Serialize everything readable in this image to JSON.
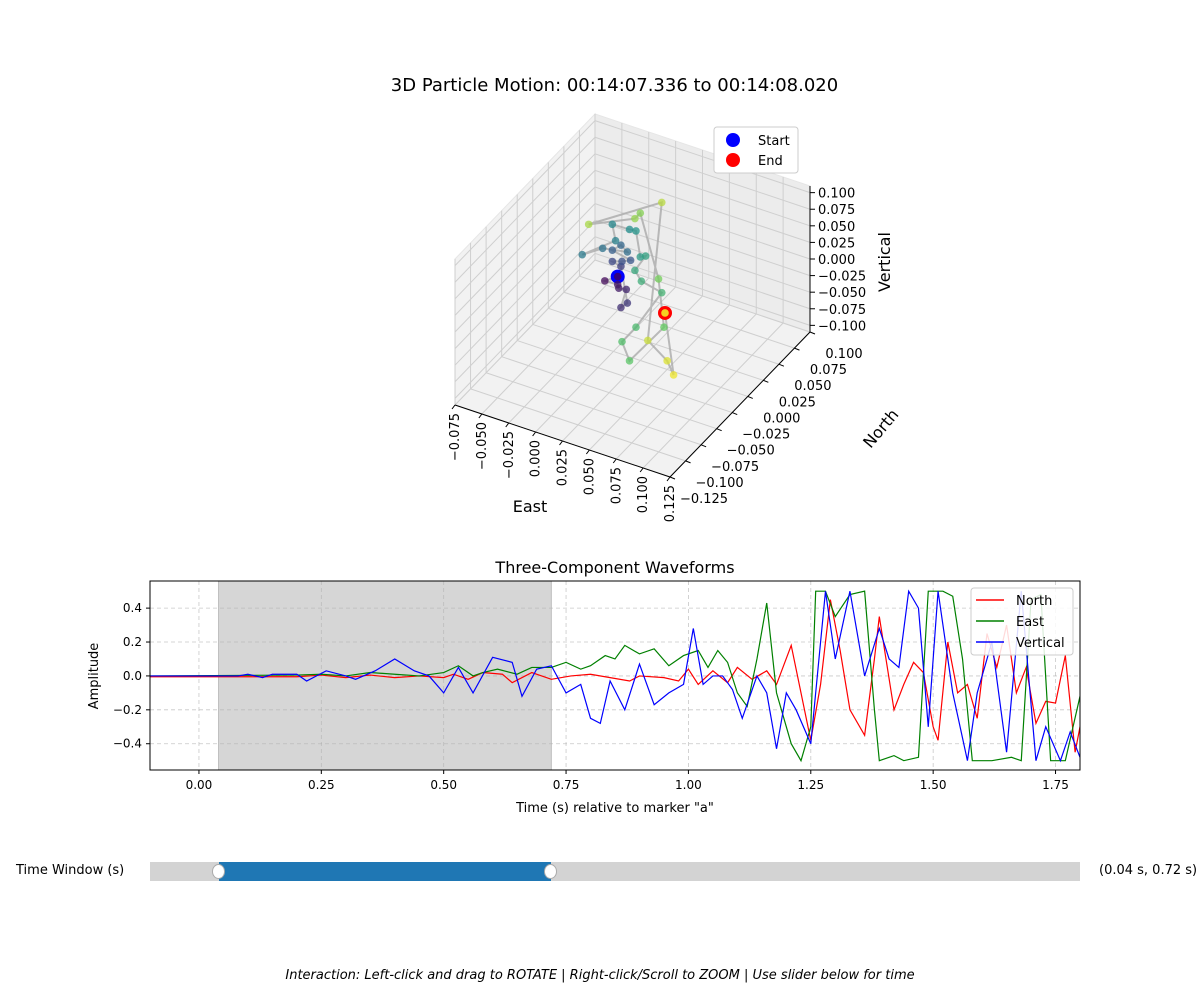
{
  "title": "3D Particle Motion: 00:14:07.336 to 00:14:08.020",
  "chart_data": [
    {
      "type": "scatter3d",
      "xlabel": "East",
      "ylabel": "North",
      "zlabel": "Vertical",
      "xlim": [
        -0.075,
        0.125
      ],
      "ylim": [
        -0.125,
        0.1
      ],
      "zlim": [
        -0.11,
        0.11
      ],
      "xticks": [
        "−0.075",
        "−0.050",
        "−0.025",
        "0.000",
        "0.025",
        "0.050",
        "0.075",
        "0.100",
        "0.125"
      ],
      "xtick_values": [
        -0.075,
        -0.05,
        -0.025,
        0,
        0.025,
        0.05,
        0.075,
        0.1,
        0.125
      ],
      "yticks": [
        "−0.125",
        "−0.100",
        "−0.075",
        "−0.050",
        "−0.025",
        "0.000",
        "0.025",
        "0.050",
        "0.075",
        "0.100"
      ],
      "ytick_values": [
        -0.125,
        -0.1,
        -0.075,
        -0.05,
        -0.025,
        0,
        0.025,
        0.05,
        0.075,
        0.1
      ],
      "zticks": [
        "−0.100",
        "−0.075",
        "−0.050",
        "−0.025",
        "0.000",
        "0.025",
        "0.050",
        "0.075",
        "0.100"
      ],
      "ztick_values": [
        -0.1,
        -0.075,
        -0.05,
        -0.025,
        0,
        0.025,
        0.05,
        0.075,
        0.1
      ],
      "legend": [
        {
          "label": "Start",
          "color": "#0000ff"
        },
        {
          "label": "End",
          "color": "#ff0000"
        }
      ],
      "legend_position": "top-right",
      "colormap": "viridis",
      "points": [
        [
          0.004,
          0,
          0.005
        ],
        [
          -0.008,
          0,
          -0.008
        ],
        [
          0.004,
          0,
          -0.007
        ],
        [
          0.005,
          0,
          -0.012
        ],
        [
          0.012,
          0,
          -0.01
        ],
        [
          0.007,
          0,
          -0.04
        ],
        [
          0.013,
          0,
          -0.03
        ],
        [
          0.007,
          0,
          0.022
        ],
        [
          -0.001,
          0,
          0.025
        ],
        [
          0.008,
          0,
          0.03
        ],
        [
          0.016,
          0,
          0.036
        ],
        [
          -0.001,
          0,
          0.042
        ],
        [
          0.007,
          0,
          0.054
        ],
        [
          0.013,
          0,
          0.047
        ],
        [
          -0.01,
          0,
          0.04
        ],
        [
          -0.029,
          0,
          0.02
        ],
        [
          0.002,
          0,
          0.058
        ],
        [
          -0.001,
          0,
          0.081
        ],
        [
          0.015,
          0,
          0.082
        ],
        [
          0.021,
          0,
          0.083
        ],
        [
          0.025,
          0,
          0.046
        ],
        [
          0.03,
          0,
          0.05
        ],
        [
          0.02,
          0,
          0.023
        ],
        [
          0.026,
          0,
          0.01
        ],
        [
          0.045,
          0,
          0.003
        ],
        [
          0.021,
          0,
          -0.062
        ],
        [
          0.008,
          0,
          -0.091
        ],
        [
          0.015,
          0,
          -0.116
        ],
        [
          0.047,
          0,
          -0.048
        ],
        [
          0.042,
          0,
          0.022
        ],
        [
          0.025,
          0,
          0.112
        ],
        [
          0.02,
          0,
          0.101
        ],
        [
          -0.023,
          0,
          0.069
        ],
        [
          0.045,
          0,
          0.139
        ],
        [
          0.032,
          0,
          -0.076
        ],
        [
          0.05,
          0,
          -0.097
        ],
        [
          0.056,
          0,
          -0.115
        ],
        [
          0.048,
          0,
          -0.026
        ]
      ]
    },
    {
      "type": "line",
      "title": "Three-Component Waveforms",
      "xlabel": "Time (s) relative to marker \"a\"",
      "ylabel": "Amplitude",
      "xlim": [
        -0.1,
        1.8
      ],
      "ylim": [
        -0.555,
        0.56
      ],
      "xticks": [
        "0.00",
        "0.25",
        "0.50",
        "0.75",
        "1.00",
        "1.25",
        "1.50",
        "1.75"
      ],
      "xtick_values": [
        0,
        0.25,
        0.5,
        0.75,
        1.0,
        1.25,
        1.5,
        1.75
      ],
      "yticks": [
        "−0.4",
        "−0.2",
        "0.0",
        "0.2",
        "0.4"
      ],
      "ytick_values": [
        -0.4,
        -0.2,
        0,
        0.2,
        0.4
      ],
      "grid": true,
      "highlight_window": [
        0.04,
        0.72
      ],
      "legend_position": "top-right",
      "series": [
        {
          "name": "North",
          "color": "#ff0000",
          "points": [
            [
              -0.1,
              -0.005
            ],
            [
              0.2,
              -0.005
            ],
            [
              0.25,
              0.005
            ],
            [
              0.3,
              -0.01
            ],
            [
              0.35,
              0.005
            ],
            [
              0.4,
              -0.01
            ],
            [
              0.45,
              0.0
            ],
            [
              0.5,
              -0.01
            ],
            [
              0.52,
              0.01
            ],
            [
              0.55,
              -0.02
            ],
            [
              0.58,
              0.02
            ],
            [
              0.62,
              0.01
            ],
            [
              0.64,
              -0.04
            ],
            [
              0.68,
              0.02
            ],
            [
              0.72,
              -0.02
            ],
            [
              0.76,
              0.0
            ],
            [
              0.8,
              0.01
            ],
            [
              0.84,
              -0.01
            ],
            [
              0.88,
              -0.03
            ],
            [
              0.9,
              0.0
            ],
            [
              0.95,
              -0.01
            ],
            [
              0.98,
              -0.03
            ],
            [
              1.0,
              0.04
            ],
            [
              1.02,
              -0.05
            ],
            [
              1.05,
              0.03
            ],
            [
              1.08,
              -0.04
            ],
            [
              1.1,
              0.05
            ],
            [
              1.13,
              -0.02
            ],
            [
              1.16,
              0.03
            ],
            [
              1.18,
              -0.05
            ],
            [
              1.21,
              0.18
            ],
            [
              1.25,
              -0.38
            ],
            [
              1.27,
              -0.05
            ],
            [
              1.29,
              0.45
            ],
            [
              1.31,
              0.15
            ],
            [
              1.33,
              -0.2
            ],
            [
              1.36,
              -0.35
            ],
            [
              1.38,
              0.1
            ],
            [
              1.39,
              0.35
            ],
            [
              1.42,
              -0.2
            ],
            [
              1.44,
              -0.05
            ],
            [
              1.46,
              0.08
            ],
            [
              1.48,
              0.02
            ],
            [
              1.5,
              -0.3
            ],
            [
              1.51,
              -0.38
            ],
            [
              1.53,
              0.2
            ],
            [
              1.55,
              -0.1
            ],
            [
              1.57,
              -0.05
            ],
            [
              1.59,
              -0.25
            ],
            [
              1.61,
              0.25
            ],
            [
              1.63,
              0.05
            ],
            [
              1.65,
              0.3
            ],
            [
              1.67,
              -0.1
            ],
            [
              1.69,
              0.05
            ],
            [
              1.71,
              -0.28
            ],
            [
              1.73,
              -0.15
            ],
            [
              1.75,
              -0.16
            ],
            [
              1.77,
              0.12
            ],
            [
              1.79,
              -0.45
            ],
            [
              1.8,
              -0.3
            ]
          ]
        },
        {
          "name": "East",
          "color": "#008000",
          "points": [
            [
              -0.1,
              0.0
            ],
            [
              0.2,
              0.005
            ],
            [
              0.25,
              0.01
            ],
            [
              0.3,
              0.0
            ],
            [
              0.35,
              0.02
            ],
            [
              0.4,
              0.01
            ],
            [
              0.45,
              0.0
            ],
            [
              0.5,
              0.02
            ],
            [
              0.53,
              0.06
            ],
            [
              0.56,
              0.0
            ],
            [
              0.58,
              0.02
            ],
            [
              0.61,
              0.04
            ],
            [
              0.65,
              0.01
            ],
            [
              0.68,
              0.05
            ],
            [
              0.72,
              0.05
            ],
            [
              0.75,
              0.08
            ],
            [
              0.78,
              0.04
            ],
            [
              0.8,
              0.06
            ],
            [
              0.83,
              0.12
            ],
            [
              0.85,
              0.1
            ],
            [
              0.87,
              0.18
            ],
            [
              0.9,
              0.13
            ],
            [
              0.93,
              0.16
            ],
            [
              0.96,
              0.06
            ],
            [
              0.99,
              0.12
            ],
            [
              1.02,
              0.15
            ],
            [
              1.04,
              0.05
            ],
            [
              1.06,
              0.15
            ],
            [
              1.08,
              0.08
            ],
            [
              1.1,
              -0.1
            ],
            [
              1.12,
              -0.18
            ],
            [
              1.14,
              0.1
            ],
            [
              1.16,
              0.43
            ],
            [
              1.18,
              -0.1
            ],
            [
              1.21,
              -0.4
            ],
            [
              1.23,
              -0.5
            ],
            [
              1.25,
              -0.3
            ],
            [
              1.26,
              0.5
            ],
            [
              1.28,
              0.5
            ],
            [
              1.3,
              0.35
            ],
            [
              1.33,
              0.48
            ],
            [
              1.36,
              0.5
            ],
            [
              1.38,
              -0.2
            ],
            [
              1.39,
              -0.5
            ],
            [
              1.42,
              -0.47
            ],
            [
              1.44,
              -0.5
            ],
            [
              1.47,
              -0.48
            ],
            [
              1.49,
              0.5
            ],
            [
              1.52,
              0.5
            ],
            [
              1.54,
              0.47
            ],
            [
              1.56,
              0.1
            ],
            [
              1.58,
              -0.5
            ],
            [
              1.62,
              -0.5
            ],
            [
              1.66,
              -0.48
            ],
            [
              1.68,
              -0.5
            ],
            [
              1.7,
              0.45
            ],
            [
              1.72,
              0.48
            ],
            [
              1.74,
              -0.5
            ],
            [
              1.77,
              -0.5
            ],
            [
              1.8,
              -0.12
            ]
          ]
        },
        {
          "name": "Vertical",
          "color": "#0000ff",
          "points": [
            [
              -0.1,
              0.0
            ],
            [
              0.08,
              0.0
            ],
            [
              0.1,
              0.01
            ],
            [
              0.13,
              -0.01
            ],
            [
              0.15,
              0.01
            ],
            [
              0.2,
              0.01
            ],
            [
              0.22,
              -0.03
            ],
            [
              0.26,
              0.03
            ],
            [
              0.3,
              0.0
            ],
            [
              0.32,
              -0.02
            ],
            [
              0.36,
              0.03
            ],
            [
              0.4,
              0.1
            ],
            [
              0.44,
              0.03
            ],
            [
              0.47,
              0.0
            ],
            [
              0.5,
              -0.1
            ],
            [
              0.53,
              0.05
            ],
            [
              0.56,
              -0.1
            ],
            [
              0.6,
              0.11
            ],
            [
              0.64,
              0.08
            ],
            [
              0.66,
              -0.12
            ],
            [
              0.69,
              0.04
            ],
            [
              0.72,
              0.06
            ],
            [
              0.75,
              -0.1
            ],
            [
              0.78,
              -0.05
            ],
            [
              0.8,
              -0.25
            ],
            [
              0.82,
              -0.28
            ],
            [
              0.84,
              -0.03
            ],
            [
              0.87,
              -0.2
            ],
            [
              0.9,
              0.07
            ],
            [
              0.93,
              -0.17
            ],
            [
              0.96,
              -0.1
            ],
            [
              0.99,
              -0.05
            ],
            [
              1.01,
              0.28
            ],
            [
              1.03,
              -0.05
            ],
            [
              1.05,
              0.0
            ],
            [
              1.07,
              0.0
            ],
            [
              1.09,
              -0.08
            ],
            [
              1.11,
              -0.25
            ],
            [
              1.14,
              0.0
            ],
            [
              1.16,
              -0.1
            ],
            [
              1.18,
              -0.43
            ],
            [
              1.2,
              -0.1
            ],
            [
              1.22,
              -0.2
            ],
            [
              1.25,
              -0.4
            ],
            [
              1.28,
              0.5
            ],
            [
              1.3,
              0.1
            ],
            [
              1.33,
              0.5
            ],
            [
              1.36,
              0.0
            ],
            [
              1.39,
              0.28
            ],
            [
              1.41,
              0.1
            ],
            [
              1.43,
              0.05
            ],
            [
              1.45,
              0.5
            ],
            [
              1.47,
              0.4
            ],
            [
              1.49,
              -0.3
            ],
            [
              1.51,
              0.5
            ],
            [
              1.54,
              -0.1
            ],
            [
              1.57,
              -0.5
            ],
            [
              1.59,
              -0.1
            ],
            [
              1.62,
              0.2
            ],
            [
              1.65,
              -0.45
            ],
            [
              1.68,
              0.5
            ],
            [
              1.71,
              -0.5
            ],
            [
              1.73,
              -0.3
            ],
            [
              1.76,
              -0.5
            ],
            [
              1.78,
              -0.33
            ],
            [
              1.8,
              -0.48
            ]
          ]
        }
      ]
    }
  ],
  "slider": {
    "label": "Time Window (s)",
    "min": -0.1,
    "max": 1.8,
    "low": 0.04,
    "high": 0.72,
    "value_text": "(0.04 s, 0.72 s)",
    "fill_color": "#1f77b4"
  },
  "footer": "Interaction: Left-click and drag to ROTATE | Right-click/Scroll to ZOOM | Use slider below for time"
}
